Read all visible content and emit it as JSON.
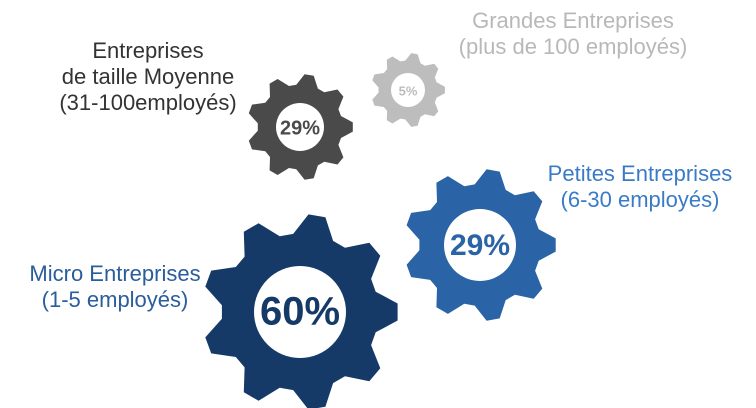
{
  "chart_data": {
    "type": "gear",
    "categories": [
      [
        "Micro Entreprises",
        "(1-5 employés)"
      ],
      [
        "Petites Entreprises",
        "(6-30 employés)"
      ],
      [
        "Entreprises",
        "de taille Moyenne",
        "(31-100employés)"
      ],
      [
        "Grandes Entreprises",
        "(plus de 100 employés)"
      ]
    ],
    "values": [
      60,
      29,
      29,
      5
    ],
    "value_labels": [
      "60%",
      "29%",
      "29%",
      "5%"
    ],
    "colors": [
      "#163a68",
      "#2a64a6",
      "#4a4a4a",
      "#bdbdbd"
    ],
    "label_colors": [
      "#2a5d9c",
      "#3a7bc8",
      "#333333",
      "#b8b8b8"
    ]
  }
}
